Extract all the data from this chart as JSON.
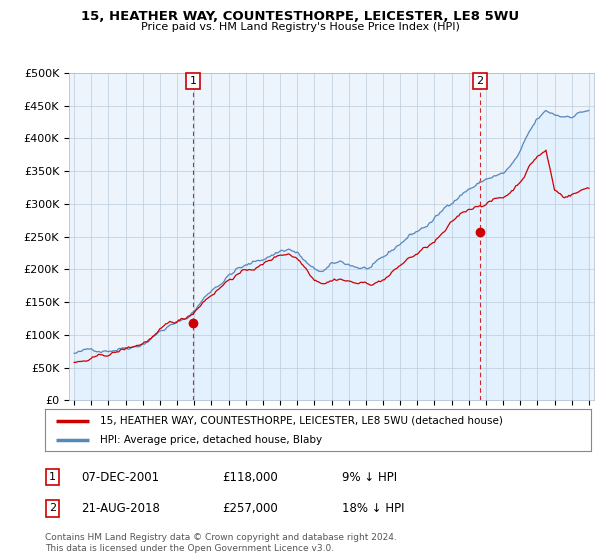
{
  "title": "15, HEATHER WAY, COUNTESTHORPE, LEICESTER, LE8 5WU",
  "subtitle": "Price paid vs. HM Land Registry's House Price Index (HPI)",
  "ylim": [
    0,
    500000
  ],
  "yticks": [
    0,
    50000,
    100000,
    150000,
    200000,
    250000,
    300000,
    350000,
    400000,
    450000,
    500000
  ],
  "ytick_labels": [
    "£0",
    "£50K",
    "£100K",
    "£150K",
    "£200K",
    "£250K",
    "£300K",
    "£350K",
    "£400K",
    "£450K",
    "£500K"
  ],
  "sale1_x": 2001.92,
  "sale1_y": 118000,
  "sale1_label": "1",
  "sale1_date": "07-DEC-2001",
  "sale1_price": "£118,000",
  "sale1_hpi": "9% ↓ HPI",
  "sale2_x": 2018.64,
  "sale2_y": 257000,
  "sale2_label": "2",
  "sale2_date": "21-AUG-2018",
  "sale2_price": "£257,000",
  "sale2_hpi": "18% ↓ HPI",
  "line_color_red": "#cc0000",
  "line_color_blue": "#5588bb",
  "fill_color_blue": "#ddeeff",
  "vline_color": "#cc0000",
  "background_color": "#ffffff",
  "plot_bg_color": "#eef4fb",
  "legend_label_red": "15, HEATHER WAY, COUNTESTHORPE, LEICESTER, LE8 5WU (detached house)",
  "legend_label_blue": "HPI: Average price, detached house, Blaby",
  "footer": "Contains HM Land Registry data © Crown copyright and database right 2024.\nThis data is licensed under the Open Government Licence v3.0.",
  "xlim_start": 1994.7,
  "xlim_end": 2025.3
}
